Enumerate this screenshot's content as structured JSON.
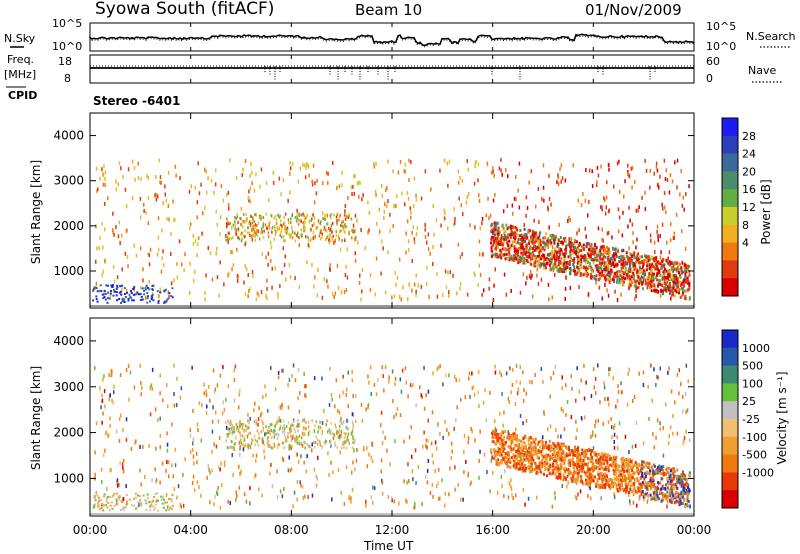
{
  "header": {
    "station": "Syowa South (fitACF)",
    "beam": "Beam 10",
    "date": "01/Nov/2009"
  },
  "noise_panel": {
    "left_label": "N.Sky",
    "right_label": "N.Search",
    "ticks_left": [
      "10^5",
      "10^0"
    ],
    "ticks_right": [
      "10^5",
      "10^0"
    ],
    "series_solid": "N.Sky",
    "series_dotted": "N.Search"
  },
  "freq_panel": {
    "left_label_1": "Freq.",
    "left_label_2": "[MHz]",
    "right_label": "Nave",
    "ticks_left": [
      "18",
      "8"
    ],
    "ticks_right": [
      "60",
      "0"
    ]
  },
  "cpid": {
    "label": "CPID",
    "value": "Stereo -6401"
  },
  "chart_data": [
    {
      "type": "heatmap",
      "name": "power",
      "ylabel": "Slant Range [km]",
      "yticks": [
        "4000",
        "3000",
        "2000",
        "1000"
      ],
      "ylim": [
        180,
        4500
      ],
      "colorbar_label": "Power [dB]",
      "colorbar_ticks": [
        "28",
        "24",
        "20",
        "16",
        "12",
        "8",
        "4"
      ],
      "colors": [
        "#1c1cf0",
        "#2a40b4",
        "#3a6a9a",
        "#4a8c6c",
        "#5fae46",
        "#c8cf2e",
        "#f0b020",
        "#f07a10",
        "#e03a10",
        "#d80000"
      ]
    },
    {
      "type": "heatmap",
      "name": "velocity",
      "ylabel": "Slant Range [km]",
      "yticks": [
        "4000",
        "3000",
        "2000",
        "1000"
      ],
      "ylim": [
        180,
        4500
      ],
      "colorbar_label": "Velocity [m s⁻¹]",
      "colorbar_ticks": [
        "1000",
        "500",
        "100",
        "25",
        "-25",
        "-100",
        "-500",
        "-1000"
      ],
      "colors": [
        "#1a2ac8",
        "#2858a8",
        "#3c8a70",
        "#66c23c",
        "#c0c0c0",
        "#f0c070",
        "#f0a030",
        "#f07a10",
        "#e83808",
        "#d80000"
      ]
    }
  ],
  "time_axis": {
    "label": "Time UT",
    "ticks": [
      "00:00",
      "04:00",
      "08:00",
      "12:00",
      "16:00",
      "20:00",
      "00:00"
    ]
  }
}
